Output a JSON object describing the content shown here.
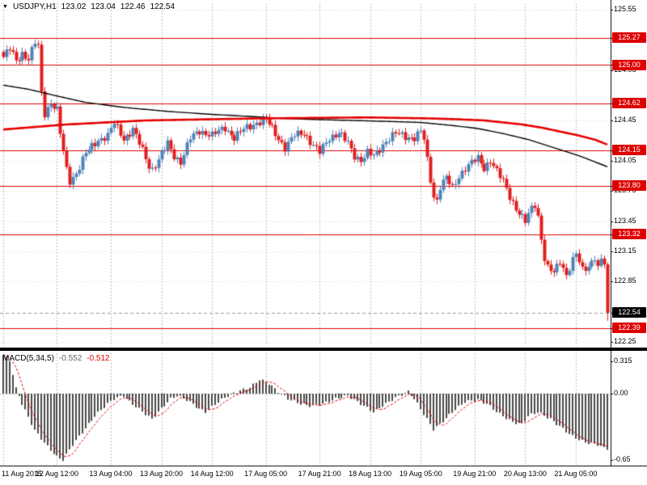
{
  "header": {
    "collapse_icon": "▼",
    "symbol": "USDJPY,H1",
    "open": "123.02",
    "high": "123.04",
    "low": "122.46",
    "close": "122.54"
  },
  "colors": {
    "background": "#ffffff",
    "bull": "#4f84b8",
    "bear": "#e01f1f",
    "ma_slow_red": "#e60000",
    "ma_fast_black": "#000000",
    "level_line": "#dd0000",
    "badge_level_bg": "#dd0000",
    "badge_current_bg": "#000000",
    "badge_text": "#ffffff",
    "macd_hist": "#4a4a4a",
    "macd_signal": "#dd0000",
    "grid": "#bdbdbd",
    "axis_text": "#000000"
  },
  "chart_data": {
    "type": "candlestick",
    "symbol": "USDJPY",
    "timeframe": "H1",
    "title": "USDJPY,H1 123.02 123.04 122.46 122.54",
    "bars_total": 192,
    "last_bar_ohlc": {
      "o": 123.02,
      "h": 123.04,
      "l": 122.46,
      "c": 122.54
    },
    "current_price": 122.54,
    "price_axis": {
      "visible_max": 125.55,
      "visible_min": 122.25,
      "labels": [
        {
          "text": "125.55",
          "price": 125.55,
          "type": "tick"
        },
        {
          "text": "125.27",
          "price": 125.27,
          "type": "level"
        },
        {
          "text": "125.00",
          "price": 125.0,
          "type": "level"
        },
        {
          "text": "124.95",
          "price": 124.95,
          "type": "tick"
        },
        {
          "text": "124.62",
          "price": 124.62,
          "type": "level"
        },
        {
          "text": "124.45",
          "price": 124.45,
          "type": "tick"
        },
        {
          "text": "124.15",
          "price": 124.15,
          "type": "level"
        },
        {
          "text": "124.05",
          "price": 124.05,
          "type": "tick"
        },
        {
          "text": "123.80",
          "price": 123.8,
          "type": "level"
        },
        {
          "text": "123.75",
          "price": 123.75,
          "type": "tick"
        },
        {
          "text": "123.45",
          "price": 123.45,
          "type": "tick"
        },
        {
          "text": "123.32",
          "price": 123.32,
          "type": "level"
        },
        {
          "text": "123.15",
          "price": 123.15,
          "type": "tick"
        },
        {
          "text": "122.85",
          "price": 122.85,
          "type": "tick"
        },
        {
          "text": "122.54",
          "price": 122.54,
          "type": "current"
        },
        {
          "text": "122.39",
          "price": 122.39,
          "type": "level"
        },
        {
          "text": "122.25",
          "price": 122.25,
          "type": "tick"
        }
      ]
    },
    "time_labels": [
      {
        "text": "11 Aug 2015",
        "bar": 0
      },
      {
        "text": "12 Aug 12:00",
        "bar": 17
      },
      {
        "text": "13 Aug 04:00",
        "bar": 34
      },
      {
        "text": "13 Aug 20:00",
        "bar": 50
      },
      {
        "text": "14 Aug 12:00",
        "bar": 66
      },
      {
        "text": "17 Aug 05:00",
        "bar": 83
      },
      {
        "text": "17 Aug 21:00",
        "bar": 100
      },
      {
        "text": "18 Aug 13:00",
        "bar": 116
      },
      {
        "text": "19 Aug 05:00",
        "bar": 132
      },
      {
        "text": "19 Aug 21:00",
        "bar": 149
      },
      {
        "text": "20 Aug 13:00",
        "bar": 165
      },
      {
        "text": "21 Aug 05:00",
        "bar": 181
      }
    ],
    "price_path_keypoints": [
      [
        0,
        125.08
      ],
      [
        2,
        125.16
      ],
      [
        4,
        125.04
      ],
      [
        6,
        125.12
      ],
      [
        8,
        125.06
      ],
      [
        10,
        125.22
      ],
      [
        11,
        125.18
      ],
      [
        12,
        124.72
      ],
      [
        13,
        124.52
      ],
      [
        15,
        124.63
      ],
      [
        17,
        124.55
      ],
      [
        18,
        124.32
      ],
      [
        20,
        123.96
      ],
      [
        21,
        123.85
      ],
      [
        23,
        123.93
      ],
      [
        26,
        124.12
      ],
      [
        30,
        124.26
      ],
      [
        33,
        124.3
      ],
      [
        35,
        124.42
      ],
      [
        38,
        124.27
      ],
      [
        41,
        124.36
      ],
      [
        44,
        124.15
      ],
      [
        46,
        124.0
      ],
      [
        47,
        123.97
      ],
      [
        49,
        124.06
      ],
      [
        52,
        124.22
      ],
      [
        54,
        124.1
      ],
      [
        56,
        124.04
      ],
      [
        59,
        124.27
      ],
      [
        62,
        124.35
      ],
      [
        66,
        124.3
      ],
      [
        70,
        124.38
      ],
      [
        73,
        124.28
      ],
      [
        76,
        124.36
      ],
      [
        80,
        124.43
      ],
      [
        83,
        124.46
      ],
      [
        86,
        124.32
      ],
      [
        89,
        124.18
      ],
      [
        92,
        124.3
      ],
      [
        95,
        124.33
      ],
      [
        98,
        124.2
      ],
      [
        100,
        124.13
      ],
      [
        103,
        124.28
      ],
      [
        106,
        124.33
      ],
      [
        109,
        124.22
      ],
      [
        111,
        124.1
      ],
      [
        113,
        124.06
      ],
      [
        115,
        124.13
      ],
      [
        117,
        124.09
      ],
      [
        119,
        124.17
      ],
      [
        121,
        124.25
      ],
      [
        124,
        124.32
      ],
      [
        127,
        124.29
      ],
      [
        130,
        124.28
      ],
      [
        132,
        124.34
      ],
      [
        133,
        124.26
      ],
      [
        134,
        124.05
      ],
      [
        135,
        123.86
      ],
      [
        136,
        123.7
      ],
      [
        137,
        123.66
      ],
      [
        138,
        123.8
      ],
      [
        140,
        123.88
      ],
      [
        142,
        123.77
      ],
      [
        144,
        123.9
      ],
      [
        146,
        123.98
      ],
      [
        148,
        124.03
      ],
      [
        150,
        124.07
      ],
      [
        152,
        123.98
      ],
      [
        154,
        124.06
      ],
      [
        156,
        123.94
      ],
      [
        158,
        123.84
      ],
      [
        160,
        123.7
      ],
      [
        162,
        123.58
      ],
      [
        164,
        123.48
      ],
      [
        165,
        123.44
      ],
      [
        167,
        123.58
      ],
      [
        168,
        123.62
      ],
      [
        169,
        123.5
      ],
      [
        170,
        123.28
      ],
      [
        171,
        123.08
      ],
      [
        172,
        122.98
      ],
      [
        174,
        122.93
      ],
      [
        176,
        123.06
      ],
      [
        178,
        122.92
      ],
      [
        180,
        123.06
      ],
      [
        181,
        123.12
      ],
      [
        183,
        122.96
      ],
      [
        185,
        123.01
      ],
      [
        187,
        123.1
      ],
      [
        188,
        122.98
      ],
      [
        189,
        123.06
      ],
      [
        190,
        123.02
      ],
      [
        191,
        122.54
      ]
    ],
    "ma_slow_red_keypoints": [
      [
        0,
        124.36
      ],
      [
        20,
        124.41
      ],
      [
        45,
        124.45
      ],
      [
        80,
        124.47
      ],
      [
        115,
        124.48
      ],
      [
        135,
        124.47
      ],
      [
        145,
        124.46
      ],
      [
        152,
        124.45
      ],
      [
        158,
        124.43
      ],
      [
        164,
        124.41
      ],
      [
        170,
        124.38
      ],
      [
        176,
        124.34
      ],
      [
        182,
        124.3
      ],
      [
        187,
        124.26
      ],
      [
        191,
        124.21
      ]
    ],
    "ma_fast_black_keypoints": [
      [
        0,
        124.8
      ],
      [
        8,
        124.76
      ],
      [
        16,
        124.7
      ],
      [
        26,
        124.63
      ],
      [
        38,
        124.58
      ],
      [
        52,
        124.54
      ],
      [
        66,
        124.51
      ],
      [
        78,
        124.49
      ],
      [
        88,
        124.47
      ],
      [
        98,
        124.46
      ],
      [
        110,
        124.45
      ],
      [
        122,
        124.44
      ],
      [
        132,
        124.43
      ],
      [
        142,
        124.4
      ],
      [
        150,
        124.37
      ],
      [
        158,
        124.32
      ],
      [
        166,
        124.26
      ],
      [
        174,
        124.18
      ],
      [
        182,
        124.1
      ],
      [
        191,
        123.99
      ]
    ],
    "macd": {
      "label": "MACD(5,34,5)",
      "main_value": "-0.552",
      "signal_value": "-0.512",
      "axis_ticks": [
        {
          "text": "0.315",
          "value": 0.315
        },
        {
          "text": "0.00",
          "value": 0.0
        },
        {
          "text": "-0.65",
          "value": -0.65
        }
      ],
      "histogram_keypoints": [
        [
          0,
          0.38
        ],
        [
          2,
          0.33
        ],
        [
          4,
          0.05
        ],
        [
          5,
          -0.02
        ],
        [
          6,
          -0.1
        ],
        [
          10,
          -0.36
        ],
        [
          14,
          -0.52
        ],
        [
          17,
          -0.62
        ],
        [
          19,
          -0.65
        ],
        [
          22,
          -0.5
        ],
        [
          25,
          -0.38
        ],
        [
          29,
          -0.22
        ],
        [
          33,
          -0.1
        ],
        [
          35,
          -0.05
        ],
        [
          38,
          -0.02
        ],
        [
          40,
          -0.08
        ],
        [
          43,
          -0.15
        ],
        [
          47,
          -0.25
        ],
        [
          49,
          -0.18
        ],
        [
          53,
          -0.05
        ],
        [
          55,
          -0.02
        ],
        [
          58,
          -0.06
        ],
        [
          62,
          -0.15
        ],
        [
          64,
          -0.18
        ],
        [
          68,
          -0.08
        ],
        [
          71,
          -0.02
        ],
        [
          75,
          0.03
        ],
        [
          78,
          0.06
        ],
        [
          81,
          0.14
        ],
        [
          84,
          0.1
        ],
        [
          87,
          0.02
        ],
        [
          90,
          -0.05
        ],
        [
          94,
          -0.1
        ],
        [
          97,
          -0.12
        ],
        [
          101,
          -0.1
        ],
        [
          105,
          -0.05
        ],
        [
          109,
          -0.02
        ],
        [
          113,
          -0.1
        ],
        [
          117,
          -0.18
        ],
        [
          120,
          -0.12
        ],
        [
          124,
          -0.04
        ],
        [
          128,
          0.02
        ],
        [
          130,
          -0.05
        ],
        [
          133,
          -0.2
        ],
        [
          136,
          -0.35
        ],
        [
          138,
          -0.3
        ],
        [
          142,
          -0.18
        ],
        [
          146,
          -0.08
        ],
        [
          150,
          -0.06
        ],
        [
          153,
          -0.1
        ],
        [
          157,
          -0.2
        ],
        [
          161,
          -0.28
        ],
        [
          164,
          -0.3
        ],
        [
          166,
          -0.22
        ],
        [
          169,
          -0.18
        ],
        [
          173,
          -0.25
        ],
        [
          176,
          -0.32
        ],
        [
          180,
          -0.42
        ],
        [
          184,
          -0.48
        ],
        [
          188,
          -0.5
        ],
        [
          191,
          -0.552
        ]
      ]
    }
  }
}
